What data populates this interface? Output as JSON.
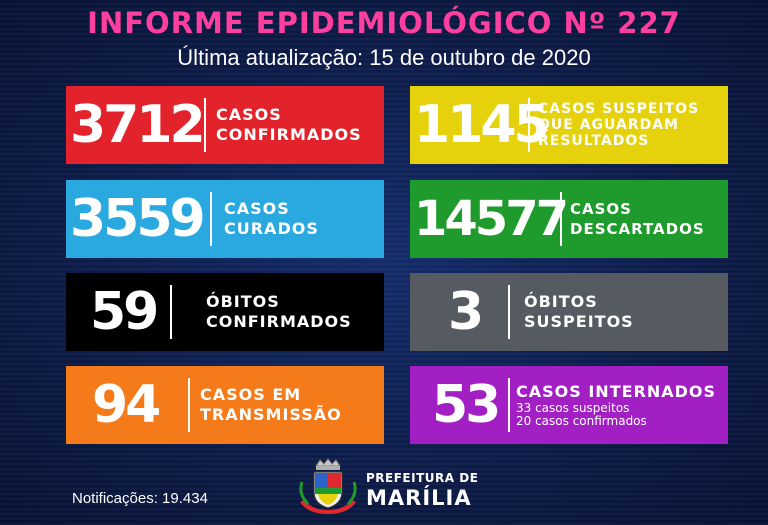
{
  "header": {
    "title": "INFORME EPIDEMIOLÓGICO Nº 227",
    "subtitle": "Última atualização: 15 de outubro de 2020"
  },
  "cards": [
    {
      "value": "3712",
      "label1": "CASOS",
      "label2": "CONFIRMADOS",
      "color": "#e3232c"
    },
    {
      "value": "1145",
      "label1": "CASOS SUSPEITOS",
      "label2": "QUE AGUARDAM",
      "label3": "RESULTADOS",
      "color": "#e6d20c"
    },
    {
      "value": "3559",
      "label1": "CASOS",
      "label2": "CURADOS",
      "color": "#29a9df"
    },
    {
      "value": "14577",
      "label1": "CASOS",
      "label2": "DESCARTADOS",
      "color": "#1f9a2c"
    },
    {
      "value": "59",
      "label1": "ÓBITOS",
      "label2": "CONFIRMADOS",
      "color": "#000000"
    },
    {
      "value": "3",
      "label1": "ÓBITOS",
      "label2": "SUSPEITOS",
      "color": "#555b60"
    },
    {
      "value": "94",
      "label1": "CASOS EM",
      "label2": "TRANSMISSÃO",
      "color": "#f47a1a"
    },
    {
      "value": "53",
      "label1": "CASOS INTERNADOS",
      "label2": "33 casos suspeitos",
      "label3": "20 casos confirmados",
      "color": "#a21fc4"
    }
  ],
  "footer": {
    "notifications": "Notificações: 19.434",
    "org_line1": "PREFEITURA DE",
    "org_line2": "MARÍLIA"
  }
}
